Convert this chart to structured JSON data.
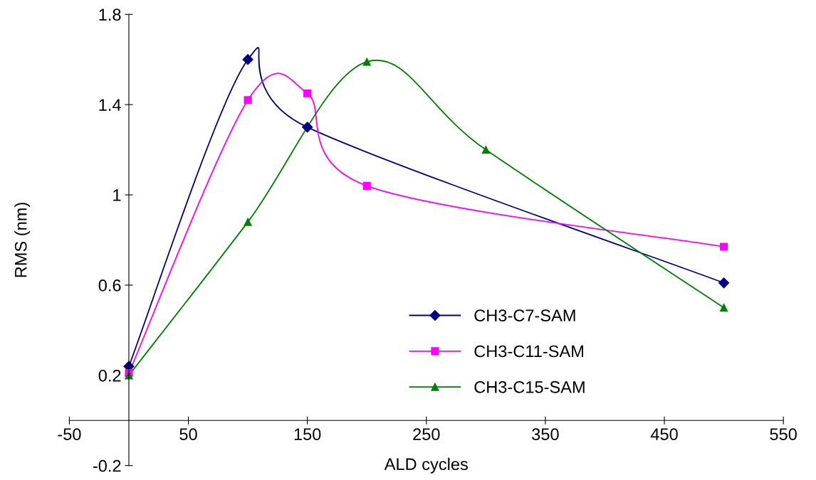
{
  "chart_data": {
    "type": "line",
    "xlabel": "ALD cycles",
    "ylabel": "RMS (nm)",
    "xlim": [
      -50,
      550
    ],
    "xticks": [
      -50,
      50,
      150,
      250,
      350,
      450,
      550
    ],
    "ylim": [
      -0.2,
      1.8
    ],
    "yticks": [
      -0.2,
      0.2,
      0.6,
      1,
      1.4,
      1.8
    ],
    "grid": false,
    "legend": "bottom",
    "series": [
      {
        "name": "CH3-C7-SAM",
        "color": "#000080",
        "marker": "diamond",
        "x": [
          0,
          100,
          150,
          500
        ],
        "values": [
          0.24,
          1.6,
          1.3,
          0.61
        ]
      },
      {
        "name": "CH3-C11-SAM",
        "color": "#ff00ff",
        "marker": "square",
        "x": [
          0,
          100,
          150,
          200,
          500
        ],
        "values": [
          0.21,
          1.42,
          1.45,
          1.04,
          0.77
        ]
      },
      {
        "name": "CH3-C15-SAM",
        "color": "#008000",
        "marker": "triangle",
        "x": [
          0,
          100,
          200,
          300,
          500
        ],
        "values": [
          0.2,
          0.88,
          1.59,
          1.2,
          0.5
        ]
      }
    ]
  }
}
